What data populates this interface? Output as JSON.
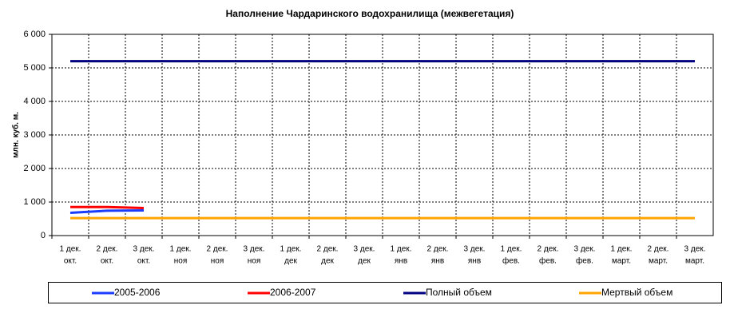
{
  "chart_data": {
    "type": "line",
    "title": "Наполнение Чардаринского водохранилища (межвегетация)",
    "y_label": "млн. куб. м.",
    "categories": [
      [
        "1 дек.",
        "окт."
      ],
      [
        "2 дек.",
        "окт."
      ],
      [
        "3 дек.",
        "окт."
      ],
      [
        "1 дек.",
        "ноя"
      ],
      [
        "2 дек.",
        "ноя"
      ],
      [
        "3 дек.",
        "ноя"
      ],
      [
        "1 дек.",
        "дек"
      ],
      [
        "2 дек.",
        "дек"
      ],
      [
        "3 дек.",
        "дек"
      ],
      [
        "1 дек.",
        "янв"
      ],
      [
        "2 дек.",
        "янв"
      ],
      [
        "3 дек.",
        "янв"
      ],
      [
        "1 дек.",
        "фев."
      ],
      [
        "2 дек.",
        "фев."
      ],
      [
        "3 дек.",
        "фев."
      ],
      [
        "1 дек.",
        "март."
      ],
      [
        "2 дек.",
        "март."
      ],
      [
        "3 дек.",
        "март."
      ]
    ],
    "series": [
      {
        "name": "2005-2006",
        "color": "#1a3cff",
        "values": [
          680,
          740,
          750,
          null,
          null,
          null,
          null,
          null,
          null,
          null,
          null,
          null,
          null,
          null,
          null,
          null,
          null,
          null
        ]
      },
      {
        "name": "2006-2007",
        "color": "#ff0000",
        "values": [
          850,
          850,
          820,
          null,
          null,
          null,
          null,
          null,
          null,
          null,
          null,
          null,
          null,
          null,
          null,
          null,
          null,
          null
        ]
      },
      {
        "name": "Полный объем",
        "color": "#000080",
        "values": [
          5200,
          5200,
          5200,
          5200,
          5200,
          5200,
          5200,
          5200,
          5200,
          5200,
          5200,
          5200,
          5200,
          5200,
          5200,
          5200,
          5200,
          5200
        ]
      },
      {
        "name": "Мертвый объем",
        "color": "#ffa500",
        "values": [
          520,
          520,
          520,
          520,
          520,
          520,
          520,
          520,
          520,
          520,
          520,
          520,
          520,
          520,
          520,
          520,
          520,
          520
        ]
      }
    ],
    "ylim": [
      0,
      6000
    ],
    "yticks": [
      0,
      {
        "value": 1000,
        "label": "1 000"
      },
      {
        "value": 2000,
        "label": "2 000"
      },
      {
        "value": 3000,
        "label": "3 000"
      },
      {
        "value": 4000,
        "label": "4 000"
      },
      {
        "value": 5000,
        "label": "5 000"
      },
      {
        "value": 6000,
        "label": "6 000"
      }
    ],
    "grid": true
  }
}
